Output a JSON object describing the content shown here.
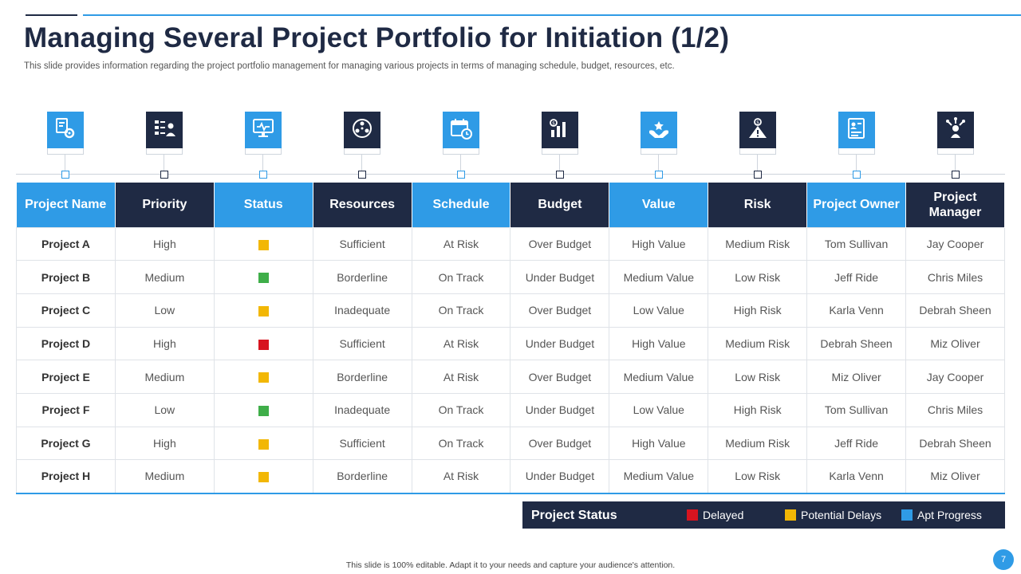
{
  "title": "Managing Several Project Portfolio for Initiation (1/2)",
  "subtitle": "This slide provides information regarding the project portfolio management for managing various projects in terms of managing schedule, budget, resources, etc.",
  "colors": {
    "blue": "#2f9be6",
    "navy": "#1f2a44",
    "delayed": "#d7141f",
    "potential_delays": "#f2b705",
    "apt_progress": "#2f9be6",
    "on_track_green": "#3fae49"
  },
  "icons": [
    {
      "name": "document-gear-icon",
      "color": "blue"
    },
    {
      "name": "priority-list-icon",
      "color": "dark"
    },
    {
      "name": "monitor-status-icon",
      "color": "blue"
    },
    {
      "name": "resources-cycle-icon",
      "color": "dark"
    },
    {
      "name": "calendar-clock-icon",
      "color": "blue"
    },
    {
      "name": "budget-chart-icon",
      "color": "dark"
    },
    {
      "name": "value-hands-icon",
      "color": "blue"
    },
    {
      "name": "risk-coin-icon",
      "color": "dark"
    },
    {
      "name": "owner-document-icon",
      "color": "blue"
    },
    {
      "name": "manager-network-icon",
      "color": "dark"
    }
  ],
  "table": {
    "headers": [
      "Project Name",
      "Priority",
      "Status",
      "Resources",
      "Schedule",
      "Budget",
      "Value",
      "Risk",
      "Project Owner",
      "Project Manager"
    ],
    "rows": [
      {
        "name": "Project A",
        "priority": "High",
        "status": "yellow",
        "resources": "Sufficient",
        "schedule": "At Risk",
        "budget": "Over Budget",
        "value": "High Value",
        "risk": "Medium Risk",
        "owner": "Tom Sullivan",
        "manager": "Jay Cooper"
      },
      {
        "name": "Project B",
        "priority": "Medium",
        "status": "green",
        "resources": "Borderline",
        "schedule": "On Track",
        "budget": "Under Budget",
        "value": "Medium Value",
        "risk": "Low Risk",
        "owner": "Jeff Ride",
        "manager": "Chris Miles"
      },
      {
        "name": "Project C",
        "priority": "Low",
        "status": "yellow",
        "resources": "Inadequate",
        "schedule": "On Track",
        "budget": "Over Budget",
        "value": "Low Value",
        "risk": "High Risk",
        "owner": "Karla Venn",
        "manager": "Debrah Sheen"
      },
      {
        "name": "Project D",
        "priority": "High",
        "status": "red",
        "resources": "Sufficient",
        "schedule": "At Risk",
        "budget": "Under Budget",
        "value": "High Value",
        "risk": "Medium Risk",
        "owner": "Debrah Sheen",
        "manager": "Miz Oliver"
      },
      {
        "name": "Project E",
        "priority": "Medium",
        "status": "yellow",
        "resources": "Borderline",
        "schedule": "At Risk",
        "budget": "Over Budget",
        "value": "Medium Value",
        "risk": "Low Risk",
        "owner": "Miz Oliver",
        "manager": "Jay Cooper"
      },
      {
        "name": "Project F",
        "priority": "Low",
        "status": "green",
        "resources": "Inadequate",
        "schedule": "On Track",
        "budget": "Under Budget",
        "value": "Low Value",
        "risk": "High Risk",
        "owner": "Tom Sullivan",
        "manager": "Chris Miles"
      },
      {
        "name": "Project G",
        "priority": "High",
        "status": "yellow",
        "resources": "Sufficient",
        "schedule": "On Track",
        "budget": "Over Budget",
        "value": "High Value",
        "risk": "Medium Risk",
        "owner": "Jeff Ride",
        "manager": "Debrah Sheen"
      },
      {
        "name": "Project H",
        "priority": "Medium",
        "status": "yellow",
        "resources": "Borderline",
        "schedule": "At Risk",
        "budget": "Under Budget",
        "value": "Medium Value",
        "risk": "Low Risk",
        "owner": "Karla Venn",
        "manager": "Miz Oliver"
      }
    ]
  },
  "legend": {
    "title": "Project Status",
    "items": [
      {
        "label": "Delayed",
        "color": "#d7141f"
      },
      {
        "label": "Potential Delays",
        "color": "#f2b705"
      },
      {
        "label": "Apt Progress",
        "color": "#2f9be6"
      }
    ]
  },
  "footer": "This slide is 100% editable. Adapt it to your needs and capture your audience's attention.",
  "page_number": "7"
}
